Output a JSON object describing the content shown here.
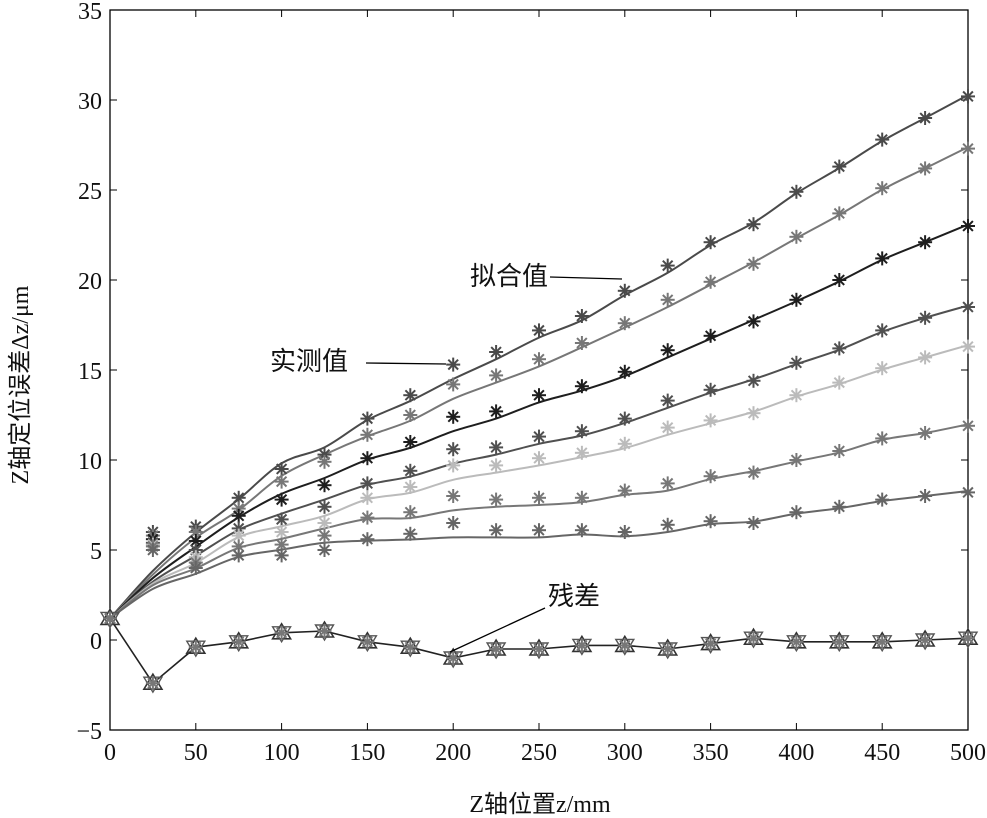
{
  "chart_data": {
    "type": "line",
    "xlabel": "Z轴位置z/mm",
    "ylabel": "Z轴定位误差Δz/μm",
    "xlim": [
      0,
      500
    ],
    "ylim": [
      -5,
      35
    ],
    "xticks": [
      0,
      50,
      100,
      150,
      200,
      250,
      300,
      350,
      400,
      450,
      500
    ],
    "yticks": [
      -5,
      0,
      5,
      10,
      15,
      20,
      25,
      30,
      35
    ],
    "ytick_labels": [
      "−5",
      "0",
      "5",
      "10",
      "15",
      "20",
      "25",
      "30",
      "35"
    ],
    "grid": false,
    "x": [
      0,
      25,
      50,
      75,
      100,
      125,
      150,
      175,
      200,
      225,
      250,
      275,
      300,
      325,
      350,
      375,
      400,
      425,
      450,
      475,
      500
    ],
    "series": [
      {
        "name": "series-1",
        "color": "#4a4a4a",
        "values": [
          1.2,
          6.0,
          6.3,
          7.9,
          9.5,
          10.3,
          12.3,
          13.6,
          15.3,
          16.0,
          17.2,
          18.0,
          19.4,
          20.8,
          22.1,
          23.1,
          24.9,
          26.3,
          27.8,
          29.0,
          30.2
        ]
      },
      {
        "name": "series-2",
        "color": "#777777",
        "values": [
          1.2,
          5.8,
          6.0,
          7.3,
          8.8,
          9.9,
          11.4,
          12.5,
          14.2,
          14.7,
          15.6,
          16.5,
          17.6,
          18.9,
          19.9,
          20.9,
          22.4,
          23.7,
          25.1,
          26.2,
          27.3
        ]
      },
      {
        "name": "series-3",
        "color": "#1e1e1e",
        "values": [
          1.2,
          5.6,
          5.5,
          6.9,
          7.8,
          8.6,
          10.1,
          11.0,
          12.4,
          12.7,
          13.6,
          14.1,
          14.9,
          16.1,
          16.9,
          17.7,
          18.9,
          20.0,
          21.2,
          22.1,
          23.0
        ]
      },
      {
        "name": "series-4",
        "color": "#505050",
        "values": [
          1.2,
          5.4,
          5.0,
          6.2,
          6.7,
          7.4,
          8.7,
          9.4,
          10.6,
          10.7,
          11.3,
          11.6,
          12.3,
          13.3,
          13.9,
          14.4,
          15.4,
          16.2,
          17.2,
          17.9,
          18.5
        ]
      },
      {
        "name": "series-5",
        "color": "#bbbbbb",
        "values": [
          1.2,
          5.3,
          4.6,
          5.8,
          6.0,
          6.5,
          7.9,
          8.5,
          9.7,
          9.7,
          10.1,
          10.4,
          10.9,
          11.8,
          12.2,
          12.6,
          13.6,
          14.3,
          15.1,
          15.7,
          16.3
        ]
      },
      {
        "name": "series-6",
        "color": "#777777",
        "values": [
          1.2,
          5.2,
          4.3,
          5.2,
          5.3,
          5.8,
          6.8,
          7.1,
          8.0,
          7.8,
          7.9,
          7.9,
          8.3,
          8.7,
          9.1,
          9.3,
          10.0,
          10.5,
          11.2,
          11.5,
          11.9
        ]
      },
      {
        "name": "series-7",
        "color": "#666666",
        "values": [
          1.2,
          5.0,
          4.0,
          4.7,
          4.7,
          5.0,
          5.6,
          5.9,
          6.5,
          6.1,
          6.1,
          6.1,
          6.0,
          6.4,
          6.6,
          6.5,
          7.1,
          7.4,
          7.8,
          8.0,
          8.2
        ]
      }
    ],
    "residual": {
      "name": "残差",
      "color": "#222222",
      "values": [
        1.2,
        -2.4,
        -0.4,
        -0.1,
        0.4,
        0.5,
        -0.1,
        -0.4,
        -1.0,
        -0.5,
        -0.5,
        -0.3,
        -0.3,
        -0.5,
        -0.2,
        0.1,
        -0.1,
        -0.1,
        -0.1,
        0.0,
        0.1
      ]
    },
    "annotations": {
      "fit": "拟合值",
      "measured": "实测值",
      "residual": "残差"
    }
  }
}
